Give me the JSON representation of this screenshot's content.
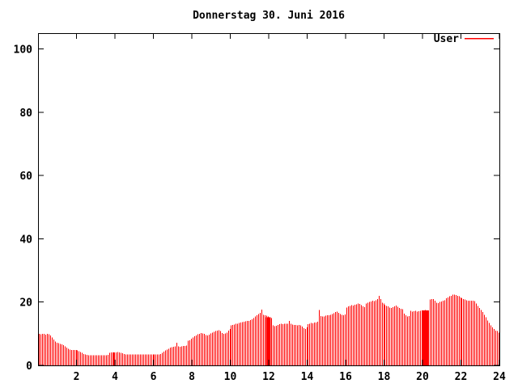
{
  "page": {
    "background": "#ffffff"
  },
  "chart_data": {
    "type": "bar",
    "title": "Donnerstag 30. Juni 2016",
    "xlabel": "",
    "ylabel": "",
    "xlim": [
      0,
      24
    ],
    "ylim": [
      0,
      105
    ],
    "x_ticks": [
      2,
      4,
      6,
      8,
      10,
      12,
      14,
      16,
      18,
      20,
      22,
      24
    ],
    "y_ticks": [
      0,
      20,
      40,
      60,
      80,
      100
    ],
    "grid": false,
    "legend_position": "top-right-inside",
    "axis_color": "#000000",
    "background_color": "#ffffff",
    "x_start_hour": 0,
    "interval_minutes": 5,
    "series": [
      {
        "name": "User",
        "color": "#ff0000",
        "values": [
          10.0,
          9.8,
          9.9,
          10.0,
          9.7,
          9.9,
          9.8,
          9.5,
          8.8,
          8.2,
          7.6,
          7.2,
          7.0,
          6.8,
          6.6,
          6.4,
          6.0,
          5.6,
          5.2,
          5.0,
          4.9,
          4.8,
          4.8,
          4.8,
          4.7,
          4.5,
          4.2,
          3.9,
          3.6,
          3.4,
          3.3,
          3.2,
          3.2,
          3.2,
          3.2,
          3.2,
          3.2,
          3.2,
          3.2,
          3.2,
          3.2,
          3.2,
          3.2,
          3.3,
          3.9,
          4.1,
          4.1,
          4.1,
          4.1,
          4.2,
          4.1,
          4.0,
          3.8,
          3.6,
          3.5,
          3.5,
          3.5,
          3.5,
          3.5,
          3.5,
          3.5,
          3.5,
          3.5,
          3.5,
          3.5,
          3.4,
          3.5,
          3.5,
          3.5,
          3.5,
          3.5,
          3.5,
          3.5,
          3.5,
          3.5,
          3.5,
          3.6,
          4.0,
          4.4,
          4.7,
          5.0,
          5.3,
          5.6,
          5.8,
          5.9,
          6.0,
          7.2,
          6.0,
          5.9,
          6.0,
          6.1,
          6.1,
          6.2,
          7.8,
          7.9,
          8.4,
          8.8,
          9.2,
          9.5,
          9.8,
          10.0,
          10.2,
          10.1,
          10.0,
          9.6,
          9.4,
          9.7,
          10.1,
          10.4,
          10.6,
          10.8,
          11.0,
          11.1,
          10.9,
          10.2,
          10.0,
          10.1,
          10.4,
          11.0,
          11.5,
          12.6,
          12.8,
          12.9,
          13.1,
          13.2,
          13.4,
          13.5,
          13.7,
          13.8,
          13.9,
          14.0,
          14.1,
          14.3,
          14.6,
          15.0,
          15.4,
          15.8,
          16.2,
          16.6,
          17.6,
          16.0,
          15.9,
          15.7,
          15.5,
          15.2,
          15.0,
          12.6,
          12.4,
          12.5,
          12.8,
          13.0,
          13.1,
          13.0,
          13.1,
          13.2,
          13.1,
          14.0,
          13.1,
          12.9,
          12.8,
          12.8,
          12.7,
          12.8,
          12.6,
          12.3,
          11.8,
          11.5,
          12.0,
          13.0,
          13.2,
          13.4,
          13.3,
          13.5,
          13.6,
          13.8,
          17.5,
          15.6,
          15.4,
          15.5,
          15.7,
          15.8,
          15.9,
          16.0,
          16.2,
          16.5,
          16.8,
          17.0,
          16.6,
          16.2,
          16.0,
          15.9,
          16.1,
          18.3,
          18.6,
          18.8,
          19.0,
          18.9,
          19.1,
          19.3,
          19.5,
          19.4,
          19.0,
          18.6,
          18.4,
          19.6,
          19.8,
          20.0,
          20.2,
          20.4,
          20.3,
          20.6,
          21.0,
          22.0,
          21.0,
          19.8,
          19.5,
          19.0,
          18.8,
          18.6,
          18.3,
          18.2,
          18.4,
          18.7,
          18.9,
          18.5,
          18.1,
          17.9,
          17.8,
          16.3,
          15.8,
          15.4,
          15.6,
          17.3,
          17.0,
          17.1,
          17.2,
          17.0,
          17.1,
          17.2,
          17.1,
          17.4,
          17.5,
          17.3,
          17.4,
          20.8,
          21.0,
          20.9,
          20.5,
          19.8,
          19.7,
          20.0,
          20.2,
          20.4,
          20.6,
          21.2,
          21.5,
          21.8,
          22.0,
          22.3,
          22.4,
          22.2,
          22.0,
          21.8,
          21.5,
          21.2,
          21.0,
          20.8,
          20.6,
          20.5,
          20.4,
          20.5,
          20.4,
          20.3,
          19.5,
          18.8,
          18.2,
          17.5,
          16.8,
          16.0,
          15.2,
          14.2,
          13.4,
          12.6,
          12.0,
          11.5,
          11.0,
          10.8,
          10.4
        ]
      }
    ],
    "dense_regions": [
      {
        "from_hour": 3.87,
        "to_hour": 4.0,
        "value": 4.1
      },
      {
        "from_hour": 11.85,
        "to_hour": 12.1,
        "value": 15.2
      },
      {
        "from_hour": 19.95,
        "to_hour": 20.3,
        "value": 17.4
      }
    ]
  }
}
